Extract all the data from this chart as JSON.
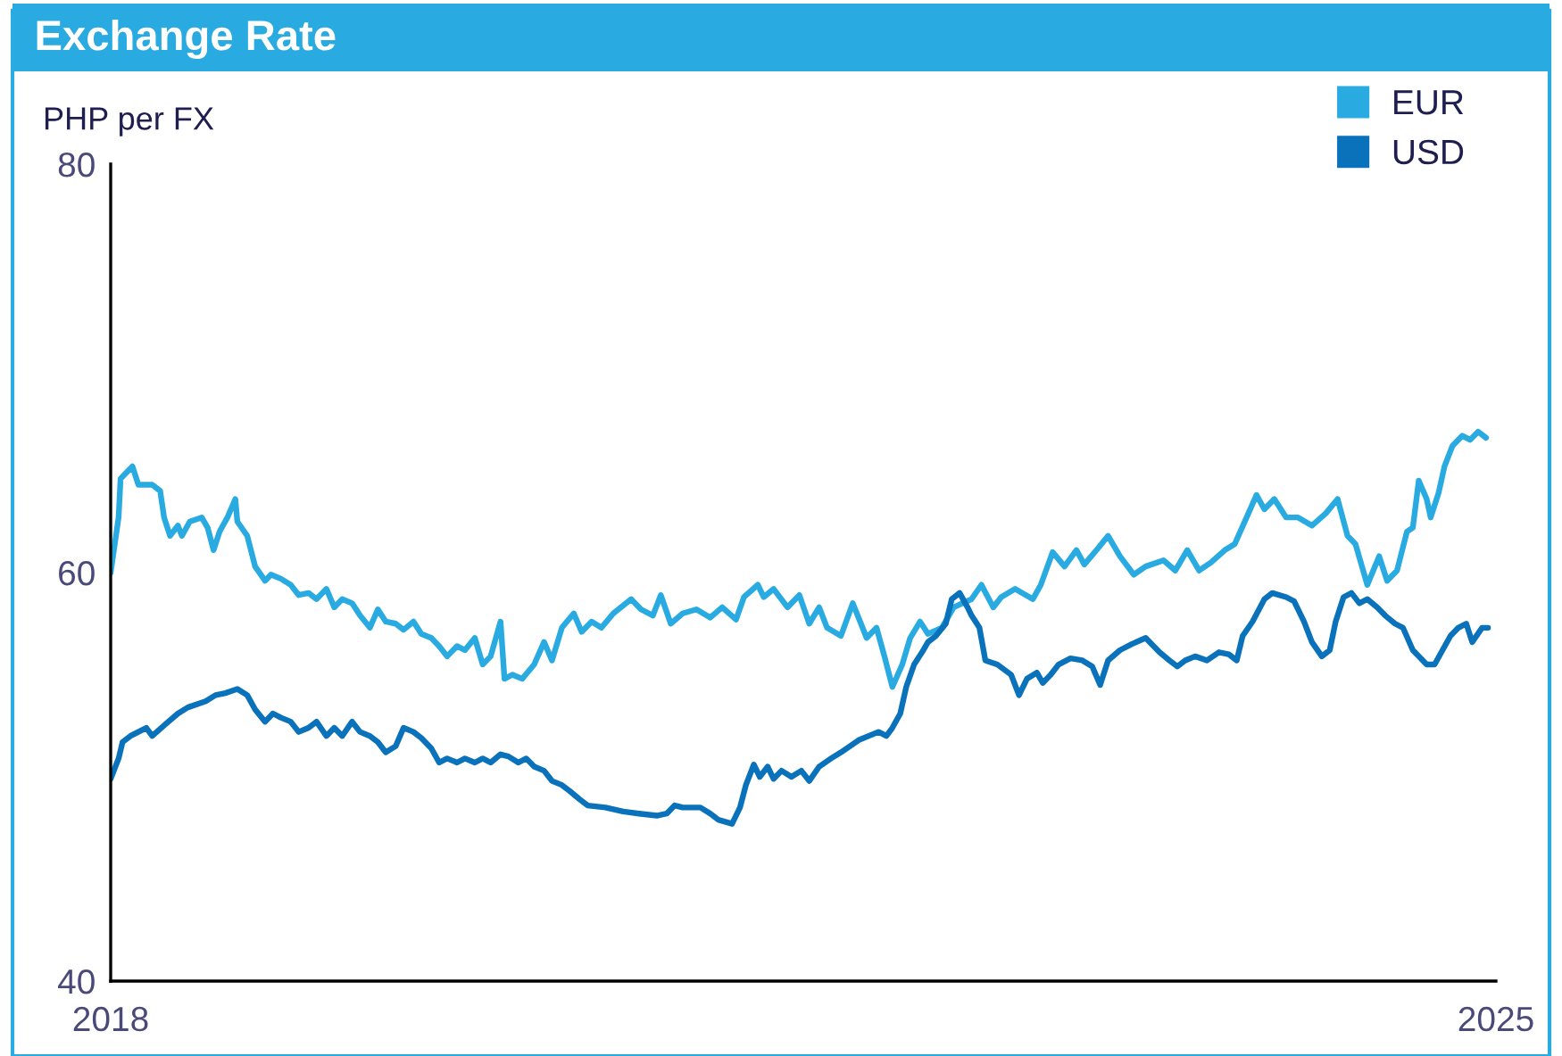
{
  "chart_data": {
    "type": "line",
    "title": "Exchange Rate",
    "ylabel": "PHP per FX",
    "xlim": [
      2018,
      2025
    ],
    "xticks": [
      2018,
      2025
    ],
    "ylim": [
      40,
      80
    ],
    "yticks": [
      40,
      60,
      80
    ],
    "grid": false,
    "legend": "top right",
    "marker": "none",
    "line_style": "solid",
    "series": [
      {
        "name": "EUR",
        "color": "#29abe2",
        "x": [
          2018.0,
          2018.04,
          2018.05,
          2018.08,
          2018.11,
          2018.14,
          2018.21,
          2018.25,
          2018.27,
          2018.3,
          2018.34,
          2018.36,
          2018.4,
          2018.46,
          2018.49,
          2018.52,
          2018.55,
          2018.59,
          2018.63,
          2018.64,
          2018.69,
          2018.73,
          2018.78,
          2018.81,
          2018.86,
          2018.91,
          2018.95,
          2019.0,
          2019.04,
          2019.09,
          2019.13,
          2019.17,
          2019.22,
          2019.26,
          2019.31,
          2019.35,
          2019.39,
          2019.44,
          2019.48,
          2019.53,
          2019.57,
          2019.62,
          2019.66,
          2019.7,
          2019.75,
          2019.79,
          2019.84,
          2019.88,
          2019.92,
          2019.97,
          2019.99,
          2020.03,
          2020.08,
          2020.14,
          2020.19,
          2020.23,
          2020.28,
          2020.34,
          2020.38,
          2020.43,
          2020.48,
          2020.54,
          2020.63,
          2020.68,
          2020.74,
          2020.78,
          2020.83,
          2020.89,
          2020.96,
          2021.03,
          2021.09,
          2021.16,
          2021.2,
          2021.27,
          2021.3,
          2021.35,
          2021.42,
          2021.48,
          2021.53,
          2021.58,
          2021.62,
          2021.69,
          2021.75,
          2021.82,
          2021.87,
          2021.91,
          2021.95,
          2022.0,
          2022.04,
          2022.09,
          2022.13,
          2022.2,
          2022.26,
          2022.35,
          2022.4,
          2022.46,
          2022.5,
          2022.57,
          2022.66,
          2022.7,
          2022.76,
          2022.82,
          2022.88,
          2022.92,
          2022.99,
          2023.04,
          2023.1,
          2023.17,
          2023.23,
          2023.32,
          2023.38,
          2023.44,
          2023.5,
          2023.56,
          2023.63,
          2023.68,
          2023.74,
          2023.79,
          2023.83,
          2023.88,
          2023.94,
          2024.0,
          2024.07,
          2024.14,
          2024.2,
          2024.25,
          2024.29,
          2024.35,
          2024.41,
          2024.45,
          2024.5,
          2024.55,
          2024.58,
          2024.61,
          2024.65,
          2024.67,
          2024.71,
          2024.74,
          2024.78,
          2024.83,
          2024.87,
          2024.91,
          2024.95
        ],
        "values": [
          60.0,
          62.7,
          64.6,
          64.9,
          65.2,
          64.3,
          64.3,
          64.0,
          62.7,
          61.8,
          62.3,
          61.8,
          62.5,
          62.7,
          62.2,
          61.1,
          62.0,
          62.7,
          63.6,
          62.5,
          61.8,
          60.3,
          59.6,
          59.9,
          59.7,
          59.4,
          58.9,
          59.0,
          58.7,
          59.2,
          58.3,
          58.7,
          58.5,
          57.9,
          57.3,
          58.2,
          57.6,
          57.5,
          57.2,
          57.6,
          57.0,
          56.8,
          56.4,
          55.9,
          56.4,
          56.2,
          56.8,
          55.5,
          55.9,
          57.6,
          54.8,
          55.0,
          54.8,
          55.5,
          56.6,
          55.7,
          57.3,
          58.0,
          57.1,
          57.6,
          57.3,
          58.0,
          58.7,
          58.2,
          57.9,
          58.9,
          57.5,
          58.0,
          58.2,
          57.8,
          58.3,
          57.7,
          58.8,
          59.4,
          58.8,
          59.2,
          58.3,
          58.9,
          57.5,
          58.3,
          57.3,
          56.9,
          58.5,
          56.8,
          57.3,
          55.9,
          54.4,
          55.5,
          56.8,
          57.6,
          57.0,
          57.3,
          58.3,
          58.7,
          59.4,
          58.3,
          58.8,
          59.2,
          58.7,
          59.4,
          61.0,
          60.3,
          61.1,
          60.4,
          61.2,
          61.8,
          60.8,
          59.9,
          60.3,
          60.6,
          60.1,
          61.1,
          60.1,
          60.5,
          61.1,
          61.4,
          62.7,
          63.8,
          63.1,
          63.6,
          62.7,
          62.7,
          62.3,
          62.9,
          63.6,
          61.8,
          61.4,
          59.4,
          60.8,
          59.6,
          60.1,
          62.0,
          62.2,
          64.5,
          63.6,
          62.7,
          63.9,
          65.2,
          66.2,
          66.7,
          66.5,
          66.9,
          66.6
        ]
      },
      {
        "name": "USD",
        "color": "#0a72ba",
        "x": [
          2018.0,
          2018.04,
          2018.06,
          2018.1,
          2018.18,
          2018.21,
          2018.28,
          2018.34,
          2018.39,
          2018.48,
          2018.53,
          2018.58,
          2018.64,
          2018.69,
          2018.73,
          2018.78,
          2018.82,
          2018.86,
          2018.91,
          2018.95,
          2019.0,
          2019.04,
          2019.09,
          2019.13,
          2019.17,
          2019.22,
          2019.26,
          2019.31,
          2019.35,
          2019.39,
          2019.44,
          2019.48,
          2019.53,
          2019.57,
          2019.62,
          2019.66,
          2019.7,
          2019.75,
          2019.79,
          2019.84,
          2019.88,
          2019.92,
          2019.97,
          2020.01,
          2020.06,
          2020.1,
          2020.14,
          2020.19,
          2020.23,
          2020.28,
          2020.32,
          2020.37,
          2020.41,
          2020.5,
          2020.59,
          2020.67,
          2020.76,
          2020.81,
          2020.85,
          2020.89,
          2020.98,
          2021.03,
          2021.07,
          2021.14,
          2021.18,
          2021.21,
          2021.25,
          2021.28,
          2021.32,
          2021.35,
          2021.39,
          2021.44,
          2021.49,
          2021.53,
          2021.58,
          2021.64,
          2021.69,
          2021.78,
          2021.88,
          2021.92,
          2021.95,
          2021.99,
          2022.02,
          2022.06,
          2022.1,
          2022.13,
          2022.17,
          2022.22,
          2022.25,
          2022.29,
          2022.33,
          2022.35,
          2022.39,
          2022.42,
          2022.48,
          2022.55,
          2022.59,
          2022.63,
          2022.68,
          2022.71,
          2022.75,
          2022.79,
          2022.85,
          2022.91,
          2022.96,
          2023.0,
          2023.04,
          2023.1,
          2023.16,
          2023.23,
          2023.3,
          2023.35,
          2023.39,
          2023.43,
          2023.48,
          2023.54,
          2023.6,
          2023.65,
          2023.69,
          2023.72,
          2023.77,
          2023.83,
          2023.87,
          2023.94,
          2023.98,
          2024.03,
          2024.07,
          2024.12,
          2024.16,
          2024.19,
          2024.23,
          2024.27,
          2024.31,
          2024.35,
          2024.4,
          2024.44,
          2024.49,
          2024.53,
          2024.58,
          2024.65,
          2024.69,
          2024.73,
          2024.77,
          2024.81,
          2024.85,
          2024.88,
          2024.93,
          2024.96
        ],
        "values": [
          49.9,
          50.9,
          51.7,
          52.0,
          52.4,
          52.0,
          52.6,
          53.1,
          53.4,
          53.7,
          54.0,
          54.1,
          54.3,
          54.0,
          53.3,
          52.7,
          53.1,
          52.9,
          52.7,
          52.2,
          52.4,
          52.7,
          52.0,
          52.4,
          52.0,
          52.7,
          52.2,
          52.0,
          51.7,
          51.2,
          51.5,
          52.4,
          52.2,
          51.9,
          51.4,
          50.7,
          50.9,
          50.7,
          50.9,
          50.7,
          50.9,
          50.7,
          51.1,
          51.0,
          50.7,
          50.9,
          50.5,
          50.3,
          49.8,
          49.6,
          49.3,
          48.9,
          48.6,
          48.5,
          48.3,
          48.2,
          48.1,
          48.2,
          48.6,
          48.5,
          48.5,
          48.2,
          47.9,
          47.7,
          48.5,
          49.6,
          50.6,
          50.0,
          50.5,
          49.9,
          50.3,
          50.0,
          50.3,
          49.8,
          50.5,
          50.9,
          51.2,
          51.8,
          52.2,
          52.0,
          52.4,
          53.1,
          54.4,
          55.5,
          56.1,
          56.6,
          56.9,
          57.5,
          58.7,
          59.0,
          58.3,
          57.9,
          57.3,
          55.7,
          55.5,
          55.0,
          54.0,
          54.8,
          55.1,
          54.6,
          55.0,
          55.5,
          55.8,
          55.7,
          55.4,
          54.5,
          55.7,
          56.2,
          56.5,
          56.8,
          56.1,
          55.7,
          55.4,
          55.7,
          55.9,
          55.7,
          56.1,
          56.0,
          55.7,
          56.9,
          57.6,
          58.7,
          59.0,
          58.8,
          58.6,
          57.6,
          56.6,
          55.9,
          56.2,
          57.6,
          58.8,
          59.0,
          58.5,
          58.7,
          58.3,
          57.9,
          57.5,
          57.3,
          56.2,
          55.5,
          55.5,
          56.2,
          56.9,
          57.3,
          57.5,
          56.6,
          57.3,
          57.3
        ]
      }
    ]
  }
}
